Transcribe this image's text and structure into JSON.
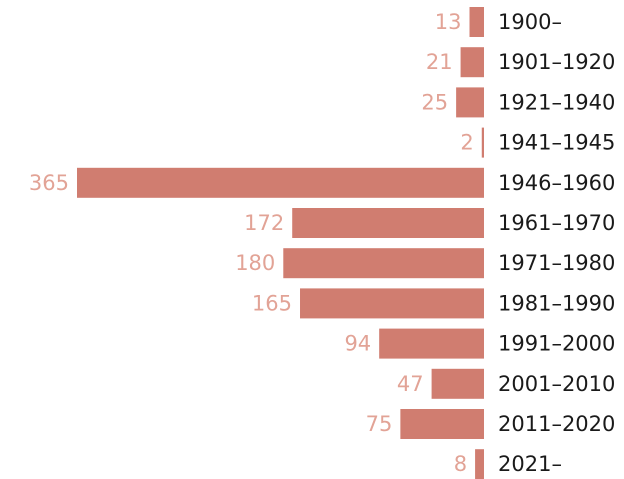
{
  "chart_data": {
    "type": "bar",
    "orientation": "horizontal",
    "categories": [
      "1900–",
      "1901–1920",
      "1921–1940",
      "1941–1945",
      "1946–1960",
      "1961–1970",
      "1971–1980",
      "1981–1990",
      "1991–2000",
      "2001–2010",
      "2011–2020",
      "2021–"
    ],
    "values": [
      13,
      21,
      25,
      2,
      365,
      172,
      180,
      165,
      94,
      47,
      75,
      8
    ],
    "color": "#d07d70"
  }
}
